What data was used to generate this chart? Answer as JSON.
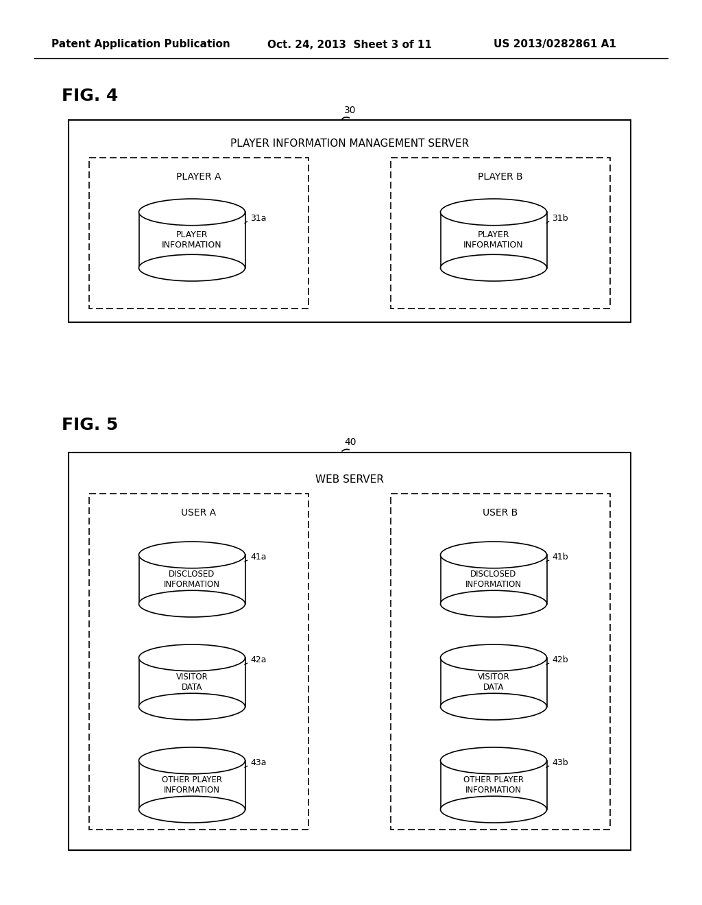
{
  "background_color": "#ffffff",
  "header_text": "Patent Application Publication",
  "header_date": "Oct. 24, 2013  Sheet 3 of 11",
  "header_patent": "US 2013/0282861 A1",
  "fig4_label": "FIG. 4",
  "fig5_label": "FIG. 5",
  "fig4_ref": "30",
  "fig5_ref": "40",
  "fig4_server_title": "PLAYER INFORMATION MANAGEMENT SERVER",
  "fig5_server_title": "WEB SERVER",
  "fig4_player_a": "PLAYER A",
  "fig4_player_b": "PLAYER B",
  "fig4_db_a_label": "PLAYER\nINFORMATION",
  "fig4_db_a_ref": "31a",
  "fig4_db_b_label": "PLAYER\nINFORMATION",
  "fig4_db_b_ref": "31b",
  "fig5_user_a": "USER A",
  "fig5_user_b": "USER B",
  "fig5_db_labels": [
    "DISCLOSED\nINFORMATION",
    "VISITOR\nDATA",
    "OTHER PLAYER\nINFORMATION"
  ],
  "fig5_db_refs_a": [
    "41a",
    "42a",
    "43a"
  ],
  "fig5_db_refs_b": [
    "41b",
    "42b",
    "43b"
  ]
}
